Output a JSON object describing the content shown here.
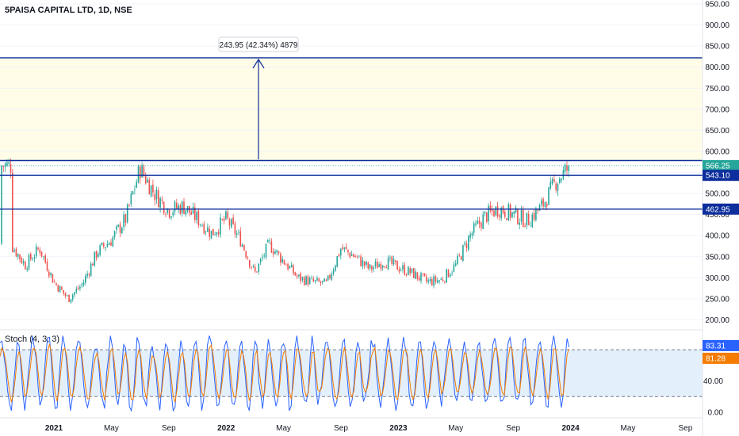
{
  "header": {
    "title": "5PAISA CAPITAL LTD, 1D, NSE"
  },
  "measure": {
    "label": "243.95 (42.34%) 4879"
  },
  "stoch": {
    "title": "Stoch (4, 3, 3)",
    "k_value": "83.31",
    "d_value": "81.28",
    "upper_band": 80,
    "lower_band": 20,
    "axis_ticks": [
      "40.00",
      "0.00"
    ],
    "k_color": "#2962ff",
    "d_color": "#f57c00",
    "band_fill": "#e3f0fc"
  },
  "price_axis": {
    "ticks": [
      "950.00",
      "900.00",
      "850.00",
      "800.00",
      "750.00",
      "700.00",
      "650.00",
      "600.00",
      "550.00",
      "500.00",
      "450.00",
      "400.00",
      "350.00",
      "300.00",
      "250.00",
      "200.00"
    ]
  },
  "time_axis": {
    "labels": [
      {
        "text": "2021",
        "bold": true
      },
      {
        "text": "May",
        "bold": false
      },
      {
        "text": "Sep",
        "bold": false
      },
      {
        "text": "2022",
        "bold": true
      },
      {
        "text": "May",
        "bold": false
      },
      {
        "text": "Sep",
        "bold": false
      },
      {
        "text": "2023",
        "bold": true
      },
      {
        "text": "May",
        "bold": false
      },
      {
        "text": "Sep",
        "bold": false
      },
      {
        "text": "2024",
        "bold": true
      },
      {
        "text": "May",
        "bold": false
      },
      {
        "text": "Sep",
        "bold": false
      }
    ]
  },
  "levels": {
    "current_price": "566.25",
    "level_1": "543.10",
    "level_2": "462.95",
    "target_top": 822.2,
    "target_base": 578.25,
    "target_zone_fill": "#fffde7",
    "line_color": "#0d2e9c",
    "up_color": "#26a69a",
    "down_color": "#ef5350"
  },
  "chart_data": {
    "type": "candlestick",
    "title": "5PAISA CAPITAL LTD, 1D, NSE",
    "ylim": [
      200,
      950
    ],
    "price_anchors": [
      {
        "date": "2020-10",
        "price": 380
      },
      {
        "date": "2020-11",
        "price": 330
      },
      {
        "date": "2020-12",
        "price": 370
      },
      {
        "date": "2021-01",
        "price": 290
      },
      {
        "date": "2021-02",
        "price": 250
      },
      {
        "date": "2021-03",
        "price": 285
      },
      {
        "date": "2021-04",
        "price": 360
      },
      {
        "date": "2021-05",
        "price": 390
      },
      {
        "date": "2021-06",
        "price": 440
      },
      {
        "date": "2021-07",
        "price": 560
      },
      {
        "date": "2021-08",
        "price": 500
      },
      {
        "date": "2021-09",
        "price": 460
      },
      {
        "date": "2021-10",
        "price": 470
      },
      {
        "date": "2021-11",
        "price": 440
      },
      {
        "date": "2021-12",
        "price": 405
      },
      {
        "date": "2022-01",
        "price": 440
      },
      {
        "date": "2022-02",
        "price": 390
      },
      {
        "date": "2022-03",
        "price": 310
      },
      {
        "date": "2022-04",
        "price": 380
      },
      {
        "date": "2022-05",
        "price": 340
      },
      {
        "date": "2022-06",
        "price": 300
      },
      {
        "date": "2022-07",
        "price": 290
      },
      {
        "date": "2022-08",
        "price": 285
      },
      {
        "date": "2022-09",
        "price": 370
      },
      {
        "date": "2022-10",
        "price": 350
      },
      {
        "date": "2022-11",
        "price": 320
      },
      {
        "date": "2022-12",
        "price": 340
      },
      {
        "date": "2023-01",
        "price": 325
      },
      {
        "date": "2023-02",
        "price": 310
      },
      {
        "date": "2023-03",
        "price": 290
      },
      {
        "date": "2023-04",
        "price": 295
      },
      {
        "date": "2023-05",
        "price": 330
      },
      {
        "date": "2023-06",
        "price": 400
      },
      {
        "date": "2023-07",
        "price": 445
      },
      {
        "date": "2023-08",
        "price": 465
      },
      {
        "date": "2023-09",
        "price": 450
      },
      {
        "date": "2023-10",
        "price": 435
      },
      {
        "date": "2023-11",
        "price": 470
      },
      {
        "date": "2023-12",
        "price": 530
      },
      {
        "date": "2024-01",
        "price": 566.25
      }
    ],
    "horizontal_levels": [
      822.2,
      578.25,
      543.1,
      462.95
    ],
    "measure": {
      "from": 578.25,
      "to": 822.2,
      "change": "243.95",
      "percent": "42.34%",
      "bars": "4879"
    },
    "stochastic": {
      "k": 83.31,
      "d": 81.28,
      "upper": 80,
      "lower": 20
    }
  }
}
